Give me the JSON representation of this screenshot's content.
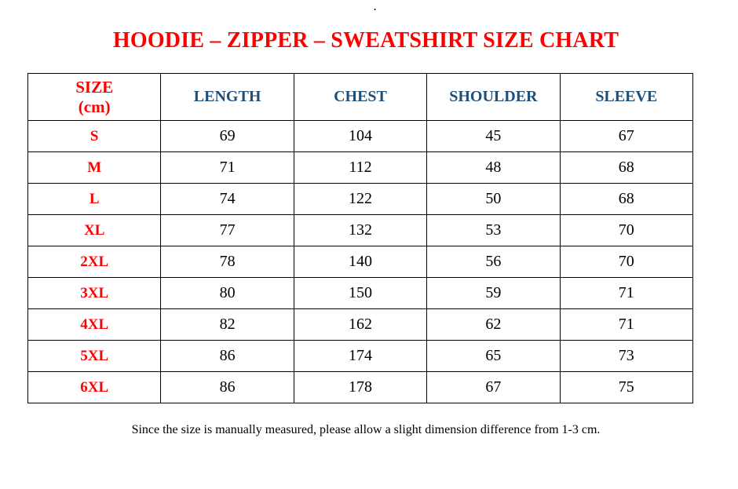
{
  "page": {
    "top_mark": ".",
    "title": "HOODIE – ZIPPER – SWEATSHIRT SIZE CHART",
    "footer_note": "Since the size is manually measured, please allow a slight dimension difference from 1-3 cm."
  },
  "colors": {
    "title_red": "#FF0000",
    "header_blue": "#1F4E79",
    "body_black": "#000000",
    "border_black": "#000000",
    "background": "#FFFFFF"
  },
  "table": {
    "size_header": {
      "line1": "SIZE",
      "line2": "(cm)"
    },
    "columns": [
      "LENGTH",
      "CHEST",
      "SHOULDER",
      "SLEEVE"
    ],
    "rows": [
      {
        "size": "S",
        "values": [
          "69",
          "104",
          "45",
          "67"
        ]
      },
      {
        "size": "M",
        "values": [
          "71",
          "112",
          "48",
          "68"
        ]
      },
      {
        "size": "L",
        "values": [
          "74",
          "122",
          "50",
          "68"
        ]
      },
      {
        "size": "XL",
        "values": [
          "77",
          "132",
          "53",
          "70"
        ]
      },
      {
        "size": "2XL",
        "values": [
          "78",
          "140",
          "56",
          "70"
        ]
      },
      {
        "size": "3XL",
        "values": [
          "80",
          "150",
          "59",
          "71"
        ]
      },
      {
        "size": "4XL",
        "values": [
          "82",
          "162",
          "62",
          "71"
        ]
      },
      {
        "size": "5XL",
        "values": [
          "86",
          "174",
          "65",
          "73"
        ]
      },
      {
        "size": "6XL",
        "values": [
          "86",
          "178",
          "67",
          "75"
        ]
      }
    ]
  }
}
